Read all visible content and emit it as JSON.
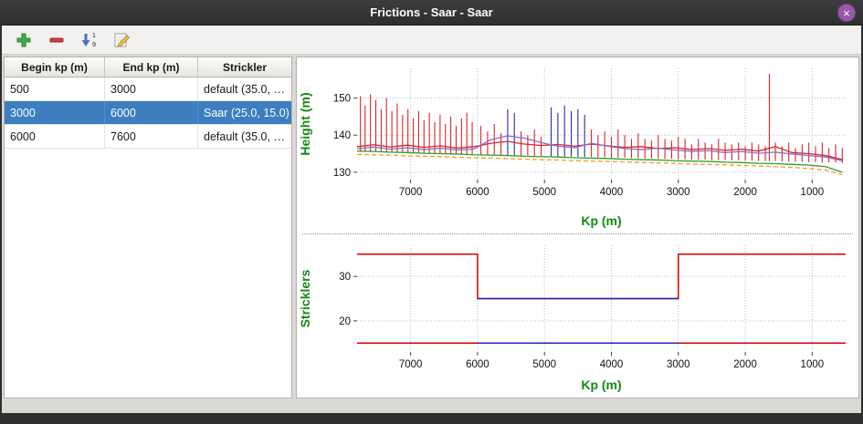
{
  "window": {
    "title": "Frictions - Saar - Saar",
    "close_glyph": "×"
  },
  "toolbar": {
    "buttons": [
      {
        "id": "add",
        "icon": "plus-icon"
      },
      {
        "id": "remove",
        "icon": "minus-icon"
      },
      {
        "id": "sort",
        "icon": "sort-1-9-icon"
      },
      {
        "id": "edit",
        "icon": "edit-pencil-icon"
      }
    ]
  },
  "table": {
    "headers": [
      "Begin kp (m)",
      "End kp (m)",
      "Strickler"
    ],
    "rows": [
      {
        "begin": "500",
        "end": "3000",
        "strickler": "default (35.0, …",
        "selected": false
      },
      {
        "begin": "3000",
        "end": "6000",
        "strickler": "Saar (25.0, 15.0)",
        "selected": true
      },
      {
        "begin": "6000",
        "end": "7600",
        "strickler": "default (35.0, …",
        "selected": false
      }
    ]
  },
  "chart_data": [
    {
      "type": "line",
      "title": "",
      "xlabel": "Kp (m)",
      "ylabel": "Height (m)",
      "label_color": "#128a12",
      "xlim": [
        7800,
        500
      ],
      "ylim": [
        128,
        158
      ],
      "xticks": [
        7000,
        6000,
        5000,
        4000,
        3000,
        2000,
        1000
      ],
      "yticks": [
        130,
        140,
        150
      ],
      "grid": true,
      "legend": "none",
      "margins": {
        "l": 66,
        "r": 14,
        "t": 12,
        "b": 56
      },
      "spike_colors": [
        "#d62728",
        "#2a2ab0"
      ],
      "x": [
        7800,
        7550,
        7300,
        7050,
        6800,
        6550,
        6300,
        6050,
        5800,
        5550,
        5300,
        5050,
        4800,
        4550,
        4300,
        4050,
        3800,
        3550,
        3300,
        3050,
        2800,
        2550,
        2300,
        2050,
        1800,
        1550,
        1300,
        1050,
        800,
        550
      ],
      "series": [
        {
          "name": "red-blue-vertical-spikes",
          "type": "spikes",
          "data": [
            [
              7750,
              135.5,
              150.5,
              0
            ],
            [
              7680,
              135.5,
              148.0,
              0
            ],
            [
              7600,
              135.4,
              151.0,
              0
            ],
            [
              7520,
              135.4,
              149.5,
              0
            ],
            [
              7440,
              135.4,
              147.0,
              0
            ],
            [
              7360,
              135.3,
              150.0,
              0
            ],
            [
              7280,
              135.3,
              146.5,
              0
            ],
            [
              7200,
              135.2,
              148.5,
              0
            ],
            [
              7120,
              135.2,
              145.5,
              0
            ],
            [
              7040,
              135.2,
              147.0,
              0
            ],
            [
              6960,
              135.1,
              144.5,
              0
            ],
            [
              6880,
              135.1,
              146.5,
              0
            ],
            [
              6800,
              135.0,
              144.0,
              0
            ],
            [
              6720,
              135.0,
              146.0,
              0
            ],
            [
              6640,
              135.0,
              143.5,
              0
            ],
            [
              6560,
              135.0,
              145.5,
              0
            ],
            [
              6480,
              134.9,
              143.0,
              0
            ],
            [
              6400,
              134.9,
              145.0,
              0
            ],
            [
              6320,
              134.9,
              142.5,
              0
            ],
            [
              6240,
              134.9,
              144.5,
              0
            ],
            [
              6160,
              134.8,
              146.0,
              0
            ],
            [
              6080,
              134.8,
              143.5,
              0
            ],
            [
              5950,
              134.7,
              142.5,
              0
            ],
            [
              5850,
              134.7,
              141.0,
              0
            ],
            [
              5750,
              134.7,
              143.0,
              0
            ],
            [
              5650,
              134.6,
              140.5,
              0
            ],
            [
              5550,
              134.6,
              147.0,
              1
            ],
            [
              5450,
              134.6,
              146.0,
              1
            ],
            [
              5350,
              134.5,
              141.0,
              0
            ],
            [
              5250,
              134.5,
              140.0,
              0
            ],
            [
              5150,
              134.4,
              141.5,
              0
            ],
            [
              5050,
              134.4,
              139.5,
              0
            ],
            [
              4900,
              134.3,
              147.5,
              1
            ],
            [
              4800,
              134.3,
              146.0,
              1
            ],
            [
              4700,
              134.2,
              148.0,
              1
            ],
            [
              4600,
              134.2,
              146.5,
              1
            ],
            [
              4500,
              134.1,
              147.0,
              1
            ],
            [
              4400,
              134.1,
              145.5,
              1
            ],
            [
              4300,
              134.1,
              141.5,
              0
            ],
            [
              4200,
              134.0,
              140.0,
              0
            ],
            [
              4100,
              134.0,
              141.0,
              0
            ],
            [
              4000,
              133.9,
              139.5,
              0
            ],
            [
              3900,
              133.9,
              141.5,
              0
            ],
            [
              3800,
              133.9,
              140.0,
              0
            ],
            [
              3700,
              133.8,
              139.0,
              0
            ],
            [
              3600,
              133.8,
              140.5,
              0
            ],
            [
              3500,
              133.7,
              139.0,
              0
            ],
            [
              3400,
              133.7,
              138.5,
              0
            ],
            [
              3300,
              133.7,
              140.0,
              0
            ],
            [
              3200,
              133.6,
              139.0,
              0
            ],
            [
              3100,
              133.6,
              138.5,
              0
            ],
            [
              3000,
              133.5,
              139.5,
              0
            ],
            [
              2900,
              133.5,
              139.0,
              0
            ],
            [
              2800,
              133.4,
              137.5,
              0
            ],
            [
              2700,
              133.4,
              139.0,
              0
            ],
            [
              2600,
              133.4,
              138.0,
              0
            ],
            [
              2500,
              133.3,
              137.5,
              0
            ],
            [
              2400,
              133.3,
              139.0,
              0
            ],
            [
              2300,
              133.3,
              138.0,
              0
            ],
            [
              2200,
              133.2,
              137.5,
              0
            ],
            [
              2100,
              133.2,
              138.0,
              0
            ],
            [
              2000,
              133.1,
              137.0,
              0
            ],
            [
              1900,
              133.1,
              138.0,
              0
            ],
            [
              1800,
              133.0,
              137.5,
              0
            ],
            [
              1700,
              133.0,
              137.0,
              0
            ],
            [
              1640,
              133.0,
              156.5,
              0
            ],
            [
              1550,
              133.0,
              138.0,
              0
            ],
            [
              1450,
              132.9,
              137.0,
              0
            ],
            [
              1350,
              132.9,
              138.0,
              0
            ],
            [
              1250,
              132.8,
              136.5,
              0
            ],
            [
              1150,
              132.8,
              137.5,
              0
            ],
            [
              1050,
              132.7,
              138.0,
              0
            ],
            [
              950,
              132.7,
              137.0,
              0
            ],
            [
              850,
              132.6,
              138.0,
              0
            ],
            [
              750,
              132.6,
              136.5,
              0
            ],
            [
              650,
              132.6,
              137.5,
              0
            ],
            [
              550,
              132.5,
              136.5,
              0
            ]
          ]
        },
        {
          "name": "red-line",
          "type": "line",
          "color": "#d62728",
          "values": [
            136.9,
            137.4,
            136.8,
            137.3,
            136.7,
            137.1,
            136.5,
            136.9,
            137.8,
            138.3,
            137.6,
            137.2,
            137.5,
            137.0,
            137.6,
            137.1,
            136.7,
            136.9,
            136.4,
            136.6,
            136.1,
            136.4,
            135.9,
            136.2,
            135.7,
            136.9,
            135.3,
            135.0,
            134.5,
            133.4
          ]
        },
        {
          "name": "purple-line",
          "type": "line",
          "color": "#8a6bc8",
          "values": [
            136.3,
            136.8,
            136.2,
            136.6,
            136.1,
            136.5,
            136.0,
            136.3,
            138.8,
            139.8,
            139.2,
            138.0,
            137.0,
            136.6,
            137.8,
            137.0,
            136.4,
            136.1,
            136.5,
            136.0,
            135.6,
            135.8,
            135.3,
            135.6,
            135.1,
            135.4,
            134.9,
            134.5,
            134.1,
            133.1
          ]
        },
        {
          "name": "green-line",
          "type": "line",
          "color": "#2ca02c",
          "values": [
            135.7,
            135.6,
            135.4,
            135.3,
            135.1,
            135.0,
            134.9,
            134.7,
            134.6,
            134.5,
            134.3,
            134.2,
            134.1,
            133.9,
            133.8,
            133.7,
            133.5,
            133.4,
            133.3,
            133.1,
            133.0,
            132.9,
            132.7,
            132.6,
            132.4,
            132.3,
            132.1,
            131.9,
            131.5,
            130.0
          ]
        },
        {
          "name": "orange-dashed-line",
          "type": "line",
          "color": "#ff9820",
          "dash": "5 3",
          "values": [
            134.8,
            134.7,
            134.6,
            134.4,
            134.3,
            134.2,
            134.0,
            133.9,
            133.8,
            133.7,
            133.5,
            133.4,
            133.3,
            133.1,
            133.0,
            132.9,
            132.8,
            132.6,
            132.5,
            132.4,
            132.2,
            132.1,
            132.0,
            131.8,
            131.7,
            131.5,
            131.3,
            131.0,
            130.6,
            129.3
          ]
        }
      ]
    },
    {
      "type": "line",
      "title": "",
      "xlabel": "Kp (m)",
      "ylabel": "Stricklers",
      "label_color": "#128a12",
      "xlim": [
        7800,
        500
      ],
      "ylim": [
        13,
        37
      ],
      "xticks": [
        7000,
        6000,
        5000,
        4000,
        3000,
        2000,
        1000
      ],
      "yticks": [
        20,
        30
      ],
      "grid": true,
      "legend": "none",
      "margins": {
        "l": 66,
        "r": 14,
        "t": 8,
        "b": 47
      },
      "series": [
        {
          "name": "default-zones-main-channel-step",
          "type": "path",
          "color": "#d40000",
          "width": 1.5,
          "points": [
            [
              7800,
              35
            ],
            [
              6000,
              35
            ],
            [
              6000,
              25
            ],
            [
              3000,
              25
            ],
            [
              3000,
              35
            ],
            [
              500,
              35
            ]
          ]
        },
        {
          "name": "default-zones-floodplain-line",
          "type": "path",
          "color": "#d40000",
          "width": 1.5,
          "points": [
            [
              7800,
              15
            ],
            [
              500,
              15
            ]
          ]
        },
        {
          "name": "saar-zone-main-channel-line",
          "type": "path",
          "color": "#2525b5",
          "width": 1.5,
          "points": [
            [
              6000,
              25
            ],
            [
              3000,
              25
            ]
          ]
        },
        {
          "name": "saar-zone-floodplain-line",
          "type": "path",
          "color": "#2525b5",
          "width": 1.5,
          "points": [
            [
              6000,
              15
            ],
            [
              3000,
              15
            ]
          ]
        }
      ]
    }
  ]
}
